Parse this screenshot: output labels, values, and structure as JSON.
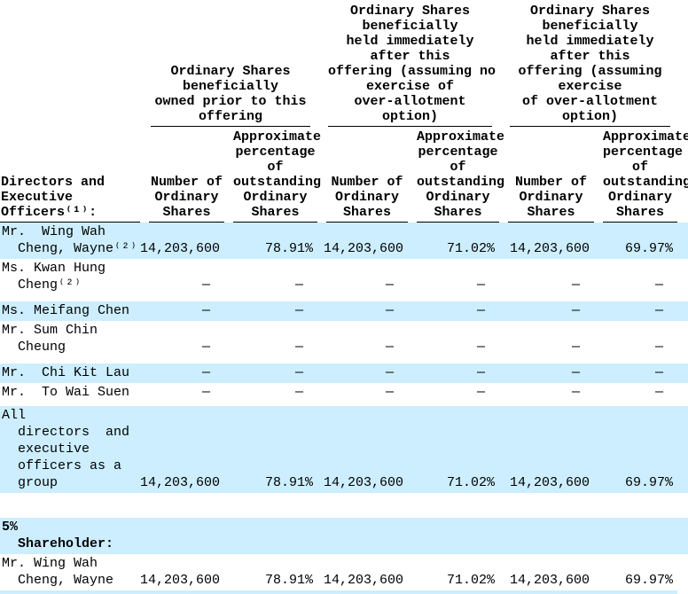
{
  "document": {
    "highlight_color": "#cceeff",
    "header": {
      "row_group_label": "Directors and\nExecutive\nOfficers⁽¹⁾:",
      "groups": [
        {
          "title": "Ordinary Shares\nbeneficially\nowned prior to this\noffering"
        },
        {
          "title": "Ordinary Shares\nbeneficially\nheld immediately\nafter this\noffering (assuming no\nexercise of\nover-allotment\noption)"
        },
        {
          "title": "Ordinary Shares\nbeneficially\nheld immediately\nafter this\noffering (assuming\nexercise\nof over-allotment\noption)"
        }
      ],
      "sub": {
        "number": "Number of\nOrdinary\nShares",
        "percent": "Approximate\npercentage\nof\noutstanding\nOrdinary\nShares"
      }
    },
    "rows": [
      {
        "name": "Mr.  Wing Wah\n  Cheng, Wayne⁽²⁾",
        "shaded": true,
        "values": [
          "14,203,600",
          "78.91%",
          "14,203,600",
          "71.02%",
          "14,203,600",
          "69.97%"
        ]
      },
      {
        "name": "Ms. Kwan Hung\n  Cheng⁽²⁾",
        "shaded": false,
        "values": [
          "—",
          "—",
          "—",
          "—",
          "—",
          "—"
        ]
      },
      {
        "name": "Ms. Meifang Chen",
        "shaded": true,
        "values": [
          "—",
          "—",
          "—",
          "—",
          "—",
          "—"
        ]
      },
      {
        "name": "Mr. Sum Chin\n  Cheung",
        "shaded": false,
        "values": [
          "—",
          "—",
          "—",
          "—",
          "—",
          "—"
        ]
      },
      {
        "name": "Mr.  Chi Kit Lau",
        "shaded": true,
        "values": [
          "—",
          "—",
          "—",
          "—",
          "—",
          "—"
        ]
      },
      {
        "name": "Mr.  To Wai Suen",
        "shaded": false,
        "values": [
          "—",
          "—",
          "—",
          "—",
          "—",
          "—"
        ]
      },
      {
        "name": "All\n  directors  and\n  executive\n  officers as a\n  group",
        "shaded": true,
        "values": [
          "14,203,600",
          "78.91%",
          "14,203,600",
          "71.02%",
          "14,203,600",
          "69.97%"
        ]
      }
    ],
    "section": {
      "label": "5%\n  Shareholder:",
      "shaded": true
    },
    "shareholders": [
      {
        "name": "Mr. Wing Wah\n  Cheng, Wayne",
        "shaded": false,
        "values": [
          "14,203,600",
          "78.91%",
          "14,203,600",
          "71.02%",
          "14,203,600",
          "69.97%"
        ]
      }
    ]
  }
}
